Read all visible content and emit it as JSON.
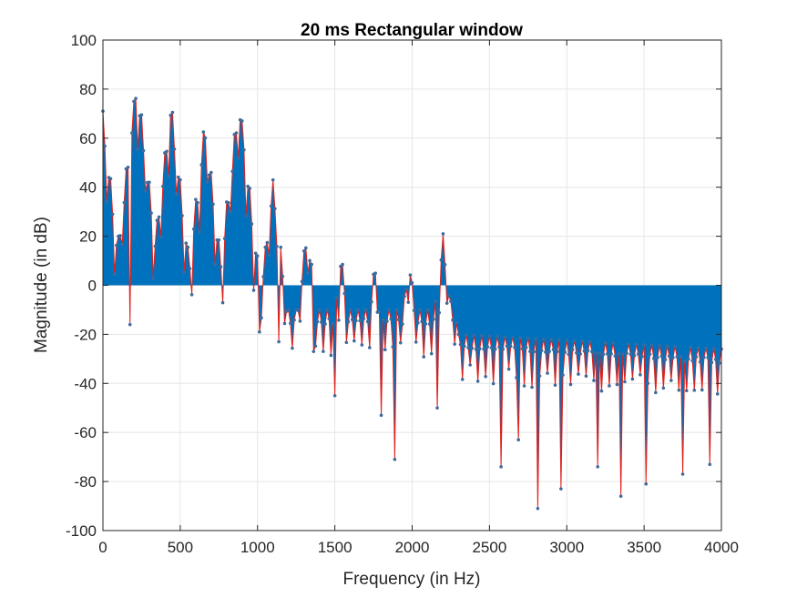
{
  "chart_data": {
    "type": "area",
    "title": "20 ms Rectangular window",
    "xlabel": "Frequency (in Hz)",
    "ylabel": "Magnitude (in dB)",
    "xlim": [
      0,
      4000
    ],
    "ylim": [
      -100,
      100
    ],
    "xticks": [
      0,
      500,
      1000,
      1500,
      2000,
      2500,
      3000,
      3500,
      4000
    ],
    "yticks": [
      -100,
      -80,
      -60,
      -40,
      -20,
      0,
      20,
      40,
      60,
      80,
      100
    ],
    "grid": true,
    "sample_spacing_hz": 12.5,
    "fill_baseline": 0,
    "colors": {
      "fill": "#0072BD",
      "line": "#E0201B",
      "marker": "#3E6A9C",
      "grid": "#E6E6E6",
      "axis": "#262626"
    },
    "harmonic_peaks": [
      {
        "freq": 0,
        "db": 71
      },
      {
        "freq": 220,
        "db": 86
      },
      {
        "freq": 440,
        "db": 76
      },
      {
        "freq": 660,
        "db": 68
      },
      {
        "freq": 880,
        "db": 78
      },
      {
        "freq": 1100,
        "db": 43
      },
      {
        "freq": 1320,
        "db": 25
      },
      {
        "freq": 1540,
        "db": 14
      },
      {
        "freq": 1760,
        "db": 10
      },
      {
        "freq": 1980,
        "db": 12
      },
      {
        "freq": 2200,
        "db": 21
      }
    ],
    "deep_nulls": [
      {
        "freq": 170,
        "db": -16
      },
      {
        "freq": 1010,
        "db": -19
      },
      {
        "freq": 1140,
        "db": -23
      },
      {
        "freq": 1360,
        "db": -27
      },
      {
        "freq": 1500,
        "db": -45
      },
      {
        "freq": 1800,
        "db": -53
      },
      {
        "freq": 1890,
        "db": -71
      },
      {
        "freq": 2160,
        "db": -50
      },
      {
        "freq": 2580,
        "db": -74
      },
      {
        "freq": 2690,
        "db": -63
      },
      {
        "freq": 2810,
        "db": -91
      },
      {
        "freq": 2960,
        "db": -83
      },
      {
        "freq": 3200,
        "db": -74
      },
      {
        "freq": 3350,
        "db": -86
      },
      {
        "freq": 3510,
        "db": -81
      },
      {
        "freq": 3750,
        "db": -77
      },
      {
        "freq": 3930,
        "db": -73
      }
    ]
  }
}
